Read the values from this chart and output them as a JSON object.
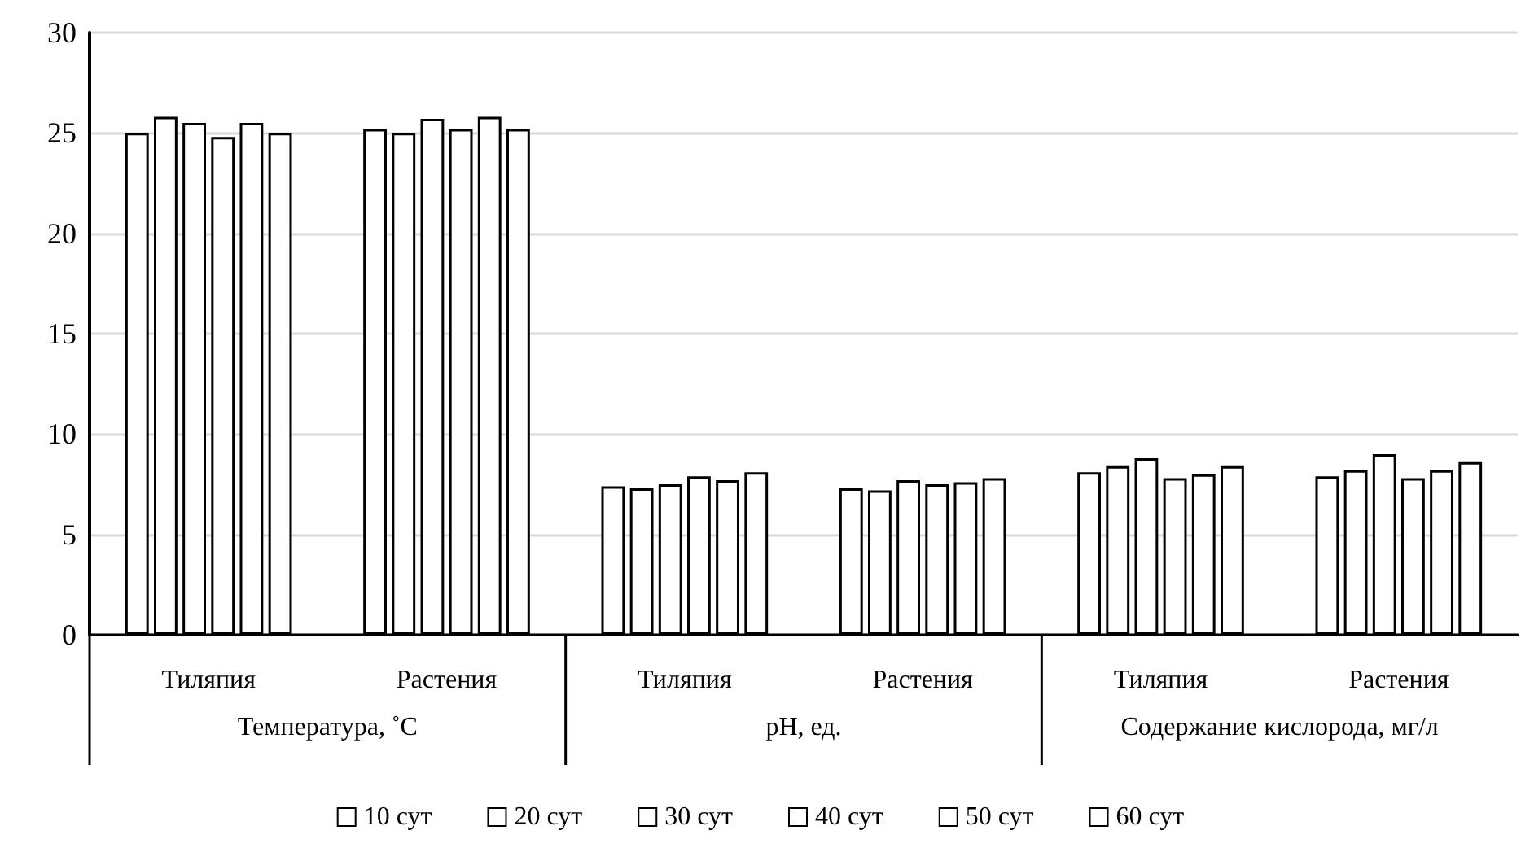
{
  "chart_data": {
    "type": "bar",
    "categories": [
      "Тиляпия",
      "Растения",
      "Тиляпия",
      "Растения",
      "Тиляпия",
      "Растения"
    ],
    "annotations": [
      "Температура, ˚С",
      "pH, ед.",
      "Содержание кислорода, мг/л"
    ],
    "series": [
      {
        "name": "10 сут",
        "color": "#ffffff",
        "values": [
          25.0,
          25.2,
          7.4,
          7.3,
          8.1,
          7.9
        ]
      },
      {
        "name": "20 сут",
        "color": "#ffffff",
        "values": [
          25.8,
          25.0,
          7.3,
          7.2,
          8.4,
          8.2
        ]
      },
      {
        "name": "30 сут",
        "color": "#ffffff",
        "values": [
          25.5,
          25.7,
          7.5,
          7.7,
          8.8,
          9.0
        ]
      },
      {
        "name": "40 сут",
        "color": "#ffffff",
        "values": [
          24.8,
          25.2,
          7.9,
          7.5,
          7.8,
          7.8
        ]
      },
      {
        "name": "50 сут",
        "color": "#ffffff",
        "values": [
          25.5,
          25.8,
          7.7,
          7.6,
          8.0,
          8.2
        ]
      },
      {
        "name": "60 сут",
        "color": "#ffffff",
        "values": [
          25.0,
          25.2,
          8.1,
          7.8,
          8.4,
          8.6
        ]
      }
    ],
    "ylim": [
      0,
      30
    ],
    "yticks": [
      0,
      5,
      10,
      15,
      20,
      25,
      30
    ],
    "grid": "y",
    "legend": "bottom"
  }
}
